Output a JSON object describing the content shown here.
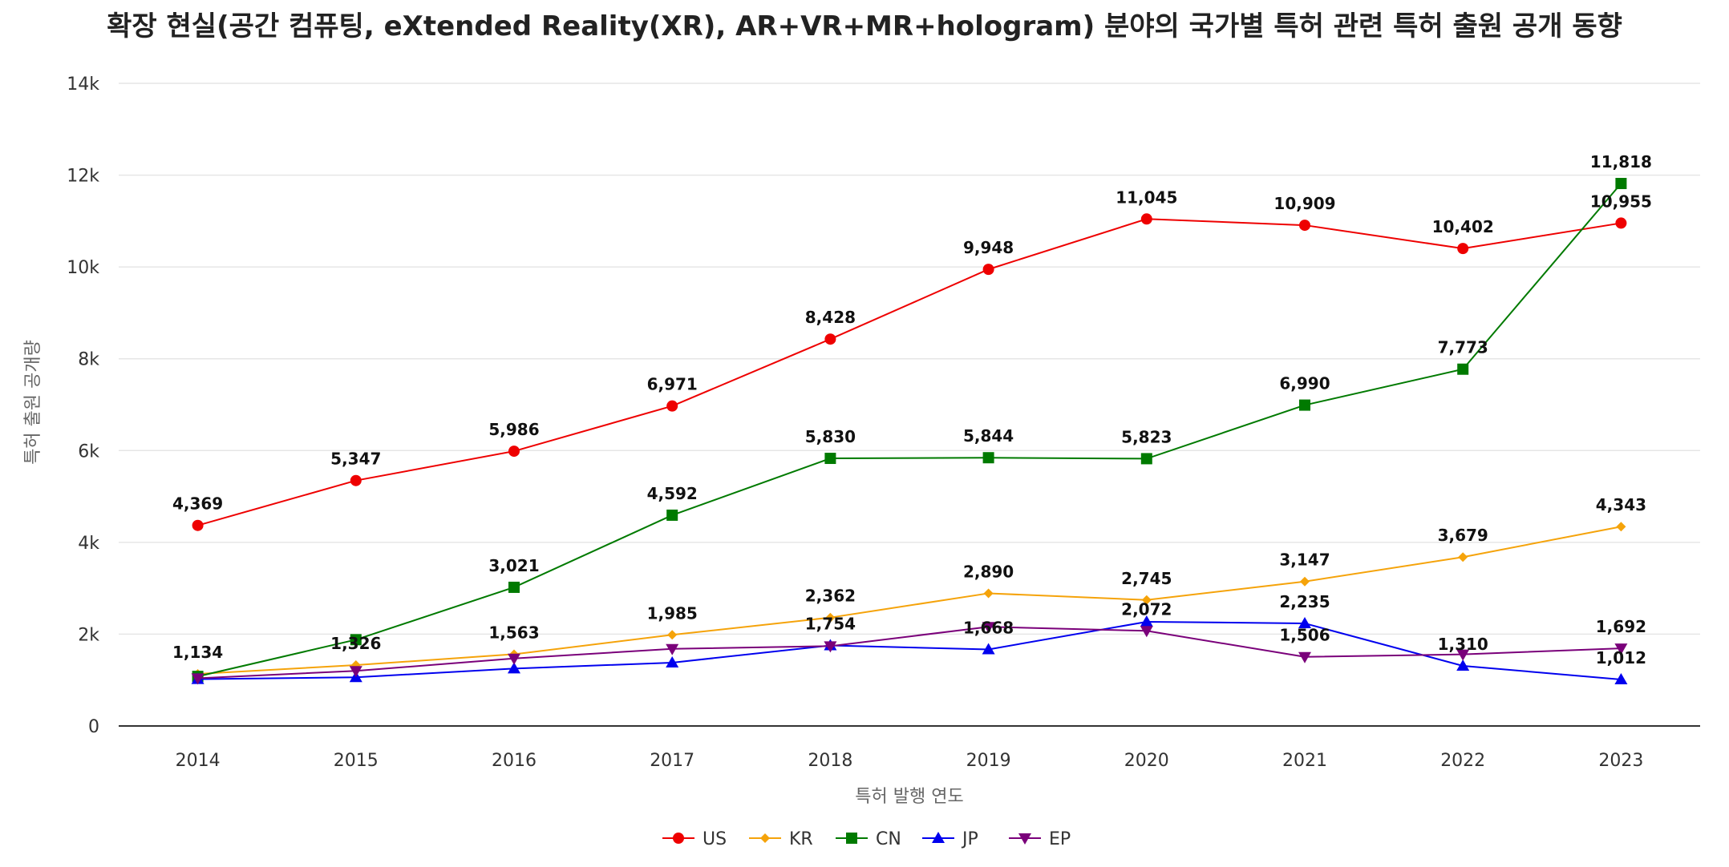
{
  "chart_data": {
    "type": "line",
    "title": "확장 현실(공간 컴퓨팅, eXtended Reality(XR), AR+VR+MR+hologram) 분야의 국가별 특허 관련 특허 출원 공개 동향",
    "xlabel": "특허 발행 연도",
    "ylabel": "특허 출원 공개량",
    "categories": [
      "2014",
      "2015",
      "2016",
      "2017",
      "2018",
      "2019",
      "2020",
      "2021",
      "2022",
      "2023"
    ],
    "ylim": [
      0,
      14000
    ],
    "yticks": [
      0,
      2000,
      4000,
      6000,
      8000,
      10000,
      12000,
      14000
    ],
    "ytick_labels": [
      "0",
      "2k",
      "4k",
      "6k",
      "8k",
      "10k",
      "12k",
      "14k"
    ],
    "grid": true,
    "legend_position": "bottom",
    "series": [
      {
        "name": "US",
        "color": "#ee0000",
        "marker": "circle",
        "values": [
          4369,
          5347,
          5986,
          6971,
          8428,
          9948,
          11045,
          10909,
          10402,
          10955
        ],
        "labels": [
          "4,369",
          "5,347",
          "5,986",
          "6,971",
          "8,428",
          "9,948",
          "11,045",
          "10,909",
          "10,402",
          "10,955"
        ]
      },
      {
        "name": "KR",
        "color": "#f5a30a",
        "marker": "diamond",
        "values": [
          1134,
          1326,
          1563,
          1985,
          2362,
          2890,
          2745,
          3147,
          3679,
          4343
        ],
        "labels": [
          "1,134",
          "1,326",
          "1,563",
          "1,985",
          "2,362",
          "2,890",
          "2,745",
          "3,147",
          "3,679",
          "4,343"
        ]
      },
      {
        "name": "CN",
        "color": "#007a00",
        "marker": "square",
        "values": [
          1080,
          1880,
          3021,
          4592,
          5830,
          5844,
          5823,
          6990,
          7773,
          11818
        ],
        "labels": [
          "",
          "",
          "3,021",
          "4,592",
          "5,830",
          "5,844",
          "5,823",
          "6,990",
          "7,773",
          "11,818"
        ]
      },
      {
        "name": "JP",
        "color": "#0000ee",
        "marker": "triangle-up",
        "values": [
          1020,
          1060,
          1250,
          1380,
          1754,
          1668,
          2270,
          2235,
          1310,
          1012
        ],
        "labels": [
          "",
          "",
          "",
          "",
          "1,754",
          "1,668",
          "",
          "2,235",
          "1,310",
          "1,012"
        ]
      },
      {
        "name": "EP",
        "color": "#7a007a",
        "marker": "triangle-down",
        "values": [
          1040,
          1200,
          1470,
          1680,
          1740,
          2160,
          2072,
          1506,
          1560,
          1692
        ],
        "labels": [
          "",
          "",
          "",
          "",
          "",
          "",
          "2,072",
          "1,506",
          "",
          "1,692"
        ]
      }
    ]
  }
}
